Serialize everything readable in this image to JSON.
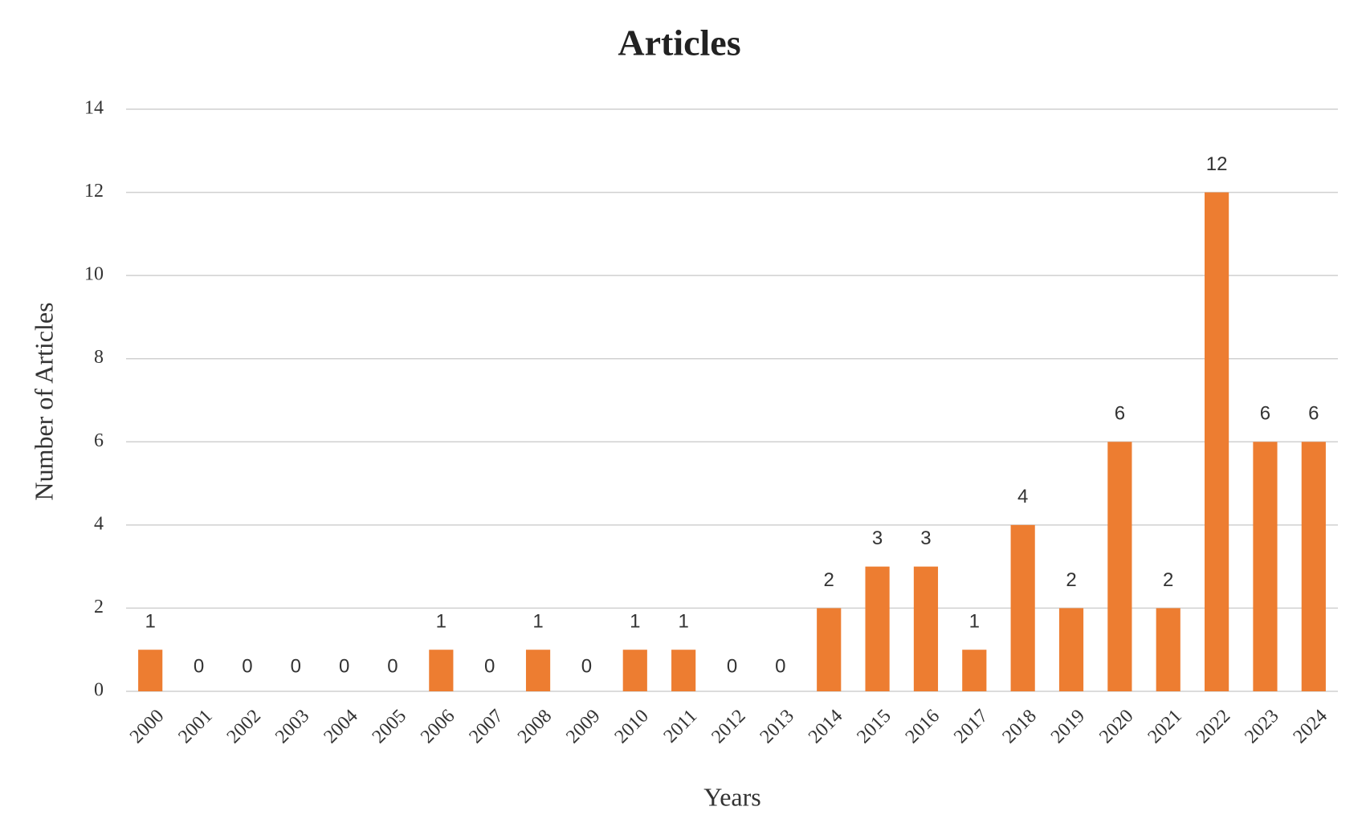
{
  "chart_data": {
    "type": "bar",
    "title": "Articles",
    "x_label": "Years",
    "y_label": "Number of Articles",
    "categories": [
      "2000",
      "2001",
      "2002",
      "2003",
      "2004",
      "2005",
      "2006",
      "2007",
      "2008",
      "2009",
      "2010",
      "2011",
      "2012",
      "2013",
      "2014",
      "2015",
      "2016",
      "2017",
      "2018",
      "2019",
      "2020",
      "2021",
      "2022",
      "2023",
      "2024"
    ],
    "values": [
      1,
      0,
      0,
      0,
      0,
      0,
      1,
      0,
      1,
      0,
      1,
      1,
      0,
      0,
      2,
      3,
      3,
      1,
      4,
      2,
      6,
      2,
      12,
      6,
      6
    ],
    "color": "#ed7d31",
    "ylim": [
      0,
      14
    ],
    "yticks": [
      0,
      2,
      4,
      6,
      8,
      10,
      12,
      14
    ],
    "grid": true
  }
}
